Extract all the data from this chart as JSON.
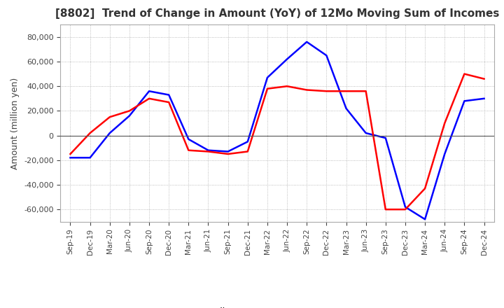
{
  "title": "[8802]  Trend of Change in Amount (YoY) of 12Mo Moving Sum of Incomes",
  "ylabel": "Amount (million yen)",
  "ylim": [
    -70000,
    90000
  ],
  "yticks": [
    -60000,
    -40000,
    -20000,
    0,
    20000,
    40000,
    60000,
    80000
  ],
  "background_color": "#ffffff",
  "grid_color": "#aaaaaa",
  "ordinary_income_color": "#0000ff",
  "net_income_color": "#ff0000",
  "dates": [
    "Sep-19",
    "Dec-19",
    "Mar-20",
    "Jun-20",
    "Sep-20",
    "Dec-20",
    "Mar-21",
    "Jun-21",
    "Sep-21",
    "Dec-21",
    "Mar-22",
    "Jun-22",
    "Sep-22",
    "Dec-22",
    "Mar-23",
    "Jun-23",
    "Sep-23",
    "Dec-23",
    "Mar-24",
    "Jun-24",
    "Sep-24",
    "Dec-24"
  ],
  "ordinary_income": [
    -18000,
    -18000,
    2000,
    16000,
    36000,
    33000,
    -3000,
    -12000,
    -13000,
    -5000,
    47000,
    62000,
    76000,
    65000,
    22000,
    2000,
    -2000,
    -58000,
    -68000,
    -15000,
    28000,
    30000
  ],
  "net_income": [
    -15000,
    2000,
    15000,
    20000,
    30000,
    27000,
    -12000,
    -13000,
    -15000,
    -13000,
    38000,
    40000,
    37000,
    36000,
    36000,
    36000,
    -60000,
    -60000,
    -43000,
    10000,
    50000,
    46000
  ]
}
